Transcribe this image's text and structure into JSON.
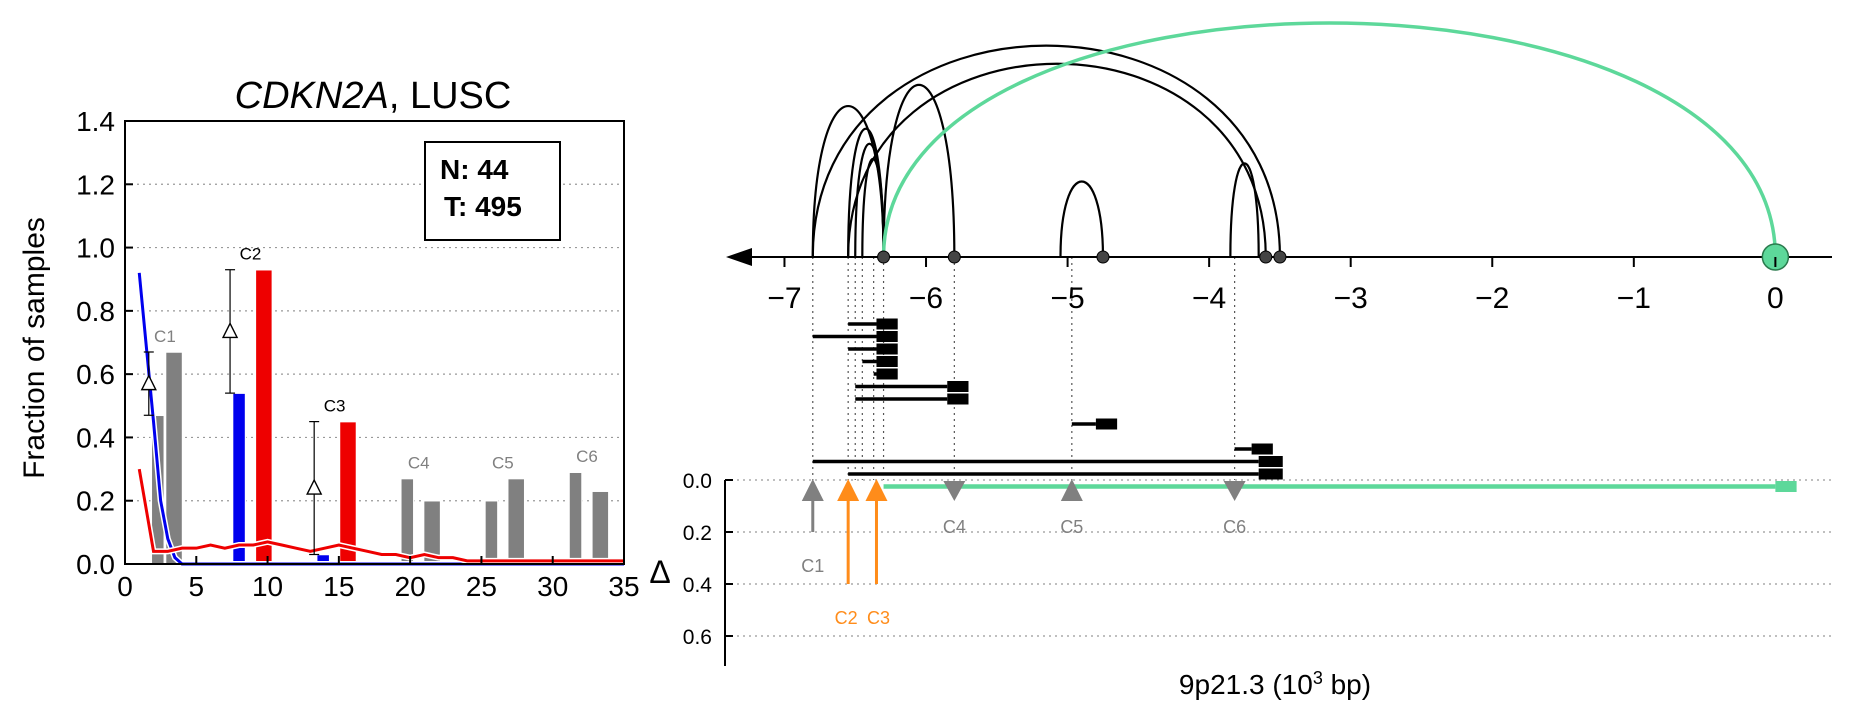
{
  "chart_data": [
    {
      "type": "bar",
      "title_gene": "CDKN2A",
      "title_suffix": ", LUSC",
      "ylabel": "Fraction of samples",
      "xlim": [
        0,
        35
      ],
      "ylim": [
        0,
        1.4
      ],
      "x_ticks": [
        0,
        5,
        10,
        15,
        20,
        25,
        30,
        35
      ],
      "y_ticks": [
        0.0,
        0.2,
        0.4,
        0.6,
        0.8,
        1.0,
        1.2,
        1.4
      ],
      "grid": "horizontal-dotted",
      "legend_box": {
        "normal": "N: 44",
        "tumor": "T: 495"
      },
      "colors": {
        "normal": "#0000ee",
        "tumor": "#ee0000",
        "gray": "#808080"
      },
      "clusters": [
        {
          "label": "C1",
          "x_normal": 2.3,
          "x_tumor": 3.3,
          "normal": 0.47,
          "tumor": 0.67,
          "gray": true,
          "delta": true,
          "err_low": 0.47,
          "err_high": 0.67
        },
        {
          "label": "C2",
          "x_normal": 8.0,
          "x_tumor": 9.6,
          "normal": 0.54,
          "tumor": 0.93,
          "gray": false,
          "delta": true,
          "err_low": 0.54,
          "err_high": 0.93
        },
        {
          "label": "C3",
          "x_normal": 13.9,
          "x_tumor": 15.5,
          "normal": 0.03,
          "tumor": 0.45,
          "gray": false,
          "delta": true,
          "err_low": 0.03,
          "err_high": 0.45
        },
        {
          "label": "C4",
          "x_normal": 19.8,
          "x_tumor": 21.4,
          "normal": 0.27,
          "tumor": 0.2,
          "gray": true,
          "delta": false
        },
        {
          "label": "C5",
          "x_normal": 25.7,
          "x_tumor": 27.3,
          "normal": 0.2,
          "tumor": 0.27,
          "gray": true,
          "delta": false
        },
        {
          "label": "C6",
          "x_normal": 31.6,
          "x_tumor": 33.2,
          "normal": 0.29,
          "tumor": 0.23,
          "gray": true,
          "delta": false
        }
      ],
      "series": [
        {
          "x": [
            1,
            2,
            2.5,
            3,
            3.5,
            4,
            5,
            10,
            20,
            35
          ],
          "y": [
            0.92,
            0.45,
            0.2,
            0.08,
            0.02,
            0.0,
            0.0,
            0.0,
            0.0,
            0.0
          ]
        },
        {
          "x": [
            1,
            2,
            3,
            4,
            5,
            6,
            7,
            8,
            9,
            10,
            11,
            12,
            13,
            14,
            15,
            16,
            17,
            18,
            19,
            20,
            21,
            22,
            23,
            24,
            25,
            26,
            27,
            28,
            29,
            30,
            31,
            32,
            33,
            34,
            35
          ],
          "y": [
            0.3,
            0.04,
            0.04,
            0.05,
            0.05,
            0.06,
            0.05,
            0.06,
            0.06,
            0.07,
            0.06,
            0.05,
            0.04,
            0.05,
            0.06,
            0.05,
            0.04,
            0.03,
            0.03,
            0.02,
            0.03,
            0.02,
            0.02,
            0.01,
            0.01,
            0.01,
            0.01,
            0.01,
            0.01,
            0.01,
            0.01,
            0.01,
            0.01,
            0.01,
            0.01
          ]
        }
      ]
    },
    {
      "type": "arc-diagram",
      "xlabel_main": "9p21.3 (10",
      "xlabel_exp": "3",
      "xlabel_end": " bp)",
      "delta_label": "Δ",
      "xlim": [
        -7.3,
        0.4
      ],
      "x_ticks": [
        -7,
        -6,
        -5,
        -4,
        -3,
        -2,
        -1,
        0
      ],
      "x_tick_labels": [
        "−7",
        "−6",
        "−5",
        "−4",
        "−3",
        "−2",
        "−1",
        "0"
      ],
      "delta_ticks": [
        0.0,
        0.2,
        0.4,
        0.6
      ],
      "delta_tick_labels": [
        "0.0",
        "0.2",
        "0.4",
        "0.6"
      ],
      "colors": {
        "arc": "#000000",
        "highlight": "#5dd89a",
        "gray": "#808080",
        "orange": "#ff8c1a"
      },
      "arcs": [
        {
          "from": -6.8,
          "to": -6.3,
          "height": 1.0
        },
        {
          "from": -6.55,
          "to": -6.3,
          "height": 0.85
        },
        {
          "from": -6.5,
          "to": -6.3,
          "height": 0.75
        },
        {
          "from": -6.45,
          "to": -6.3,
          "height": 0.65
        },
        {
          "from": -6.3,
          "to": -5.8,
          "height": 1.14
        },
        {
          "from": -6.8,
          "to": -3.5,
          "height": 1.4
        },
        {
          "from": -6.55,
          "to": -3.6,
          "height": 1.28
        },
        {
          "from": -5.05,
          "to": -4.75,
          "height": 0.5
        },
        {
          "from": -3.85,
          "to": -3.65,
          "height": 0.62
        }
      ],
      "highlight_arc": {
        "from": -6.3,
        "to": 0.0,
        "height": 1.55
      },
      "nodes": [
        -6.3,
        -5.8,
        -4.75,
        -3.6,
        -3.5
      ],
      "highlight_node": 0.0,
      "dotted_guides": [
        -6.8,
        -6.55,
        -6.5,
        -6.45,
        -6.37,
        -6.3,
        -5.8,
        -4.97,
        -3.82
      ],
      "segments": [
        {
          "from": -6.55,
          "to": -6.35,
          "box_to": -6.2,
          "row": 0
        },
        {
          "from": -6.8,
          "to": -6.35,
          "box_to": -6.2,
          "row": 1
        },
        {
          "from": -6.55,
          "to": -6.35,
          "box_to": -6.2,
          "row": 2
        },
        {
          "from": -6.45,
          "to": -6.35,
          "box_to": -6.2,
          "row": 3
        },
        {
          "from": -6.37,
          "to": -6.35,
          "box_to": -6.2,
          "row": 4
        },
        {
          "from": -6.5,
          "to": -5.85,
          "box_to": -5.7,
          "row": 5
        },
        {
          "from": -6.5,
          "to": -5.85,
          "box_to": -5.7,
          "row": 6
        },
        {
          "from": -4.97,
          "to": -4.8,
          "box_to": -4.65,
          "row": 8
        },
        {
          "from": -3.82,
          "to": -3.7,
          "box_to": -3.55,
          "row": 10
        },
        {
          "from": -6.8,
          "to": -3.65,
          "box_to": -3.48,
          "row": 11
        },
        {
          "from": -6.55,
          "to": -3.65,
          "box_to": -3.48,
          "row": 12
        }
      ],
      "highlight_segment": {
        "from": -6.3,
        "to": 0.0,
        "box_to": 0.15,
        "row": 13
      },
      "markers": [
        {
          "label": "C1",
          "x": -6.8,
          "direction": "up",
          "delta": 0.2,
          "color": "gray",
          "arrow": true
        },
        {
          "label": "C2",
          "x": -6.55,
          "direction": "up",
          "delta": 0.4,
          "color": "orange",
          "arrow": true
        },
        {
          "label": "C3",
          "x": -6.35,
          "direction": "up",
          "delta": 0.4,
          "color": "orange",
          "arrow": true
        },
        {
          "label": "C4",
          "x": -5.8,
          "direction": "down",
          "delta": 0.0,
          "color": "gray",
          "arrow": false
        },
        {
          "label": "C5",
          "x": -4.97,
          "direction": "up",
          "delta": 0.0,
          "color": "gray",
          "arrow": false
        },
        {
          "label": "C6",
          "x": -3.82,
          "direction": "down",
          "delta": 0.0,
          "color": "gray",
          "arrow": false
        }
      ]
    }
  ]
}
